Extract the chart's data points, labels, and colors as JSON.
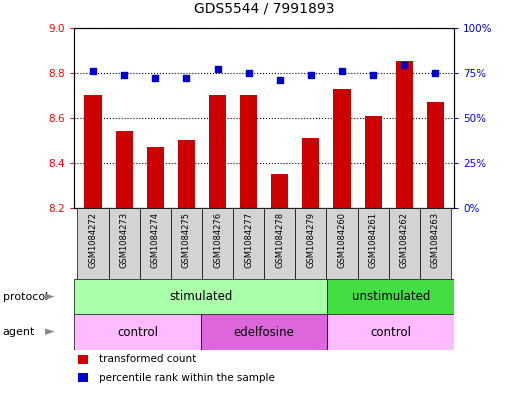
{
  "title": "GDS5544 / 7991893",
  "samples": [
    "GSM1084272",
    "GSM1084273",
    "GSM1084274",
    "GSM1084275",
    "GSM1084276",
    "GSM1084277",
    "GSM1084278",
    "GSM1084279",
    "GSM1084260",
    "GSM1084261",
    "GSM1084262",
    "GSM1084263"
  ],
  "transformed_count": [
    8.7,
    8.54,
    8.47,
    8.5,
    8.7,
    8.7,
    8.35,
    8.51,
    8.73,
    8.61,
    8.85,
    8.67
  ],
  "percentile_rank": [
    76,
    74,
    72,
    72,
    77,
    75,
    71,
    74,
    76,
    74,
    79,
    75
  ],
  "ylim_left": [
    8.2,
    9.0
  ],
  "ylim_right": [
    0,
    100
  ],
  "yticks_left": [
    8.2,
    8.4,
    8.6,
    8.8,
    9.0
  ],
  "yticks_right": [
    0,
    25,
    50,
    75,
    100
  ],
  "ytick_labels_right": [
    "0%",
    "25%",
    "50%",
    "75%",
    "100%"
  ],
  "bar_color": "#cc0000",
  "dot_color": "#0000cc",
  "bar_bottom": 8.2,
  "protocol_labels": [
    {
      "text": "stimulated",
      "start": 0,
      "end": 7,
      "color": "#aaffaa"
    },
    {
      "text": "unstimulated",
      "start": 8,
      "end": 11,
      "color": "#44dd44"
    }
  ],
  "agent_labels": [
    {
      "text": "control",
      "start": 0,
      "end": 3,
      "color": "#ffbbff"
    },
    {
      "text": "edelfosine",
      "start": 4,
      "end": 7,
      "color": "#dd66dd"
    },
    {
      "text": "control",
      "start": 8,
      "end": 11,
      "color": "#ffbbff"
    }
  ],
  "legend_items": [
    {
      "label": "transformed count",
      "color": "#cc0000"
    },
    {
      "label": "percentile rank within the sample",
      "color": "#0000cc"
    }
  ],
  "background_color": "#ffffff",
  "grid_color": "#000000",
  "sample_box_color": "#d3d3d3"
}
